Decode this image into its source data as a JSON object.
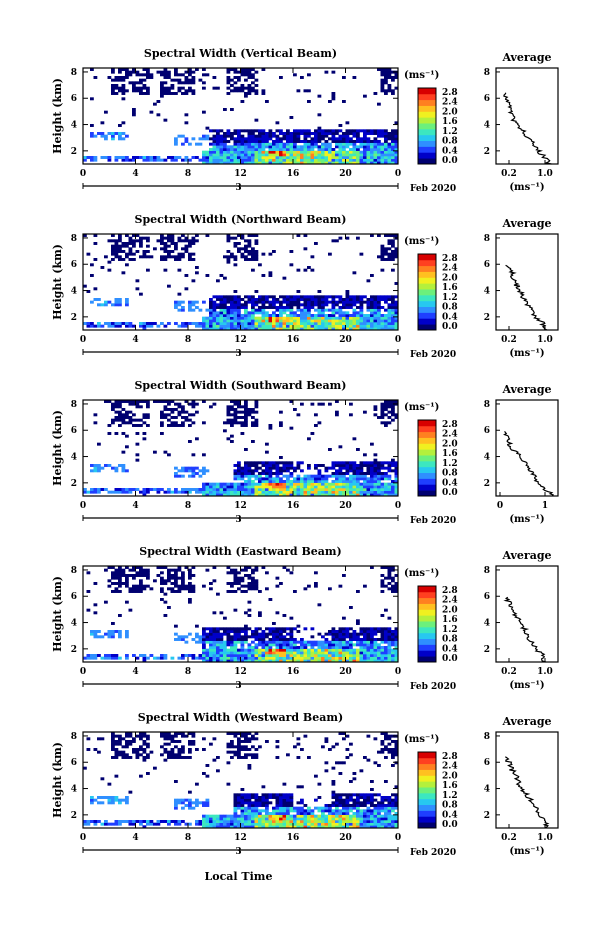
{
  "colorbar": {
    "unit": "(ms⁻¹)",
    "ticks": [
      "2.8",
      "2.4",
      "2.0",
      "1.6",
      "1.2",
      "0.8",
      "0.4",
      "0.0"
    ],
    "colors": [
      "#000070",
      "#0000c8",
      "#1f3fff",
      "#2f8fff",
      "#27c8f0",
      "#3ce7c0",
      "#6cf07c",
      "#b4f03c",
      "#f0f020",
      "#ffc020",
      "#ff8020",
      "#ff4020",
      "#d80000"
    ]
  },
  "colorbar_alt": {
    "ticks": [
      "2.8",
      "2.4",
      "2.0",
      "1.6",
      "1.2",
      "0.8",
      "0.4",
      "0.0"
    ]
  },
  "time_ticks": [
    "0",
    "4",
    "8",
    "12",
    "16",
    "20",
    "0"
  ],
  "date_tick": "3",
  "date_label": "Feb 2020",
  "xlabel": "Local Time",
  "height_label": "Height (km)",
  "height_ticks": [
    "2",
    "4",
    "6",
    "8"
  ],
  "avg_title": "Average",
  "avg_unit": "(ms⁻¹)",
  "panels": [
    {
      "title": "Spectral Width (Vertical Beam)",
      "avg_ticks": [
        "0.2",
        "1.0"
      ]
    },
    {
      "title": "Spectral Width (Northward Beam)",
      "avg_ticks": [
        "0.2",
        "1.0"
      ]
    },
    {
      "title": "Spectral Width (Southward Beam)",
      "avg_ticks": [
        "0",
        "1"
      ]
    },
    {
      "title": "Spectral Width (Eastward Beam)",
      "avg_ticks": [
        "0.2",
        "1.0"
      ]
    },
    {
      "title": "Spectral Width (Westward Beam)",
      "avg_ticks": [
        "0.2",
        "1.0"
      ]
    }
  ],
  "chart_data": {
    "type": "heatmap",
    "x_range_hours": [
      0,
      24
    ],
    "y_range_km": [
      1,
      8
    ],
    "color_range_ms": [
      0.0,
      2.8
    ],
    "panels": [
      {
        "beam": "Vertical",
        "avg_profile": {
          "height_km": [
            1,
            1.5,
            2,
            2.5,
            3,
            3.5,
            4,
            4.5,
            5,
            5.5,
            6,
            6.5
          ],
          "width_ms": [
            1.1,
            1.0,
            0.85,
            0.75,
            0.6,
            0.55,
            0.35,
            0.3,
            0.25,
            0.2,
            0.15,
            0.1
          ]
        }
      },
      {
        "beam": "Northward",
        "avg_profile": {
          "height_km": [
            1,
            1.5,
            2,
            2.5,
            3,
            3.5,
            4,
            4.5,
            5,
            5.5,
            6
          ],
          "width_ms": [
            1.05,
            0.95,
            0.8,
            0.7,
            0.6,
            0.5,
            0.45,
            0.35,
            0.3,
            0.25,
            0.15
          ]
        }
      },
      {
        "beam": "Southward",
        "avg_profile": {
          "height_km": [
            1,
            1.5,
            2,
            2.5,
            3,
            3.5,
            4,
            4.5,
            5,
            5.5,
            6
          ],
          "width_ms": [
            1.2,
            1.0,
            0.85,
            0.75,
            0.65,
            0.55,
            0.45,
            0.3,
            0.2,
            0.15,
            0.1
          ]
        }
      },
      {
        "beam": "Eastward",
        "avg_profile": {
          "height_km": [
            1,
            1.5,
            2,
            2.5,
            3,
            3.5,
            4,
            4.5,
            5,
            5.5,
            6
          ],
          "width_ms": [
            1.0,
            0.95,
            0.8,
            0.7,
            0.6,
            0.55,
            0.45,
            0.35,
            0.3,
            0.2,
            0.15
          ]
        }
      },
      {
        "beam": "Westward",
        "avg_profile": {
          "height_km": [
            1,
            1.5,
            2,
            2.5,
            3,
            3.5,
            4,
            4.5,
            5,
            5.5,
            6,
            6.5
          ],
          "width_ms": [
            1.05,
            1.0,
            0.9,
            0.8,
            0.7,
            0.6,
            0.5,
            0.4,
            0.35,
            0.25,
            0.2,
            0.1
          ]
        }
      }
    ]
  }
}
